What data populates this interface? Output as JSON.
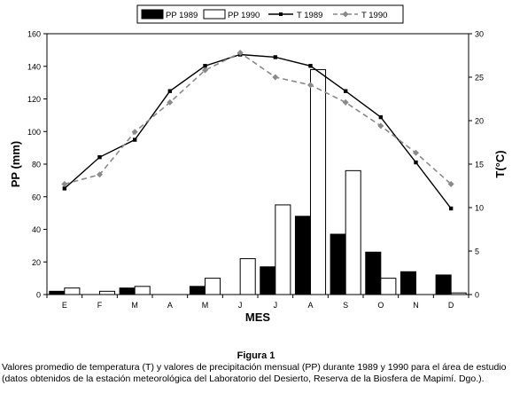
{
  "chart_data": {
    "type": "bar",
    "categories": [
      "E",
      "F",
      "M",
      "A",
      "M",
      "J",
      "J",
      "A",
      "S",
      "O",
      "N",
      "D"
    ],
    "xlabel": "MES",
    "ylabel_left": "PP (mm)",
    "ylabel_right": "T(°C)",
    "ylim_left": [
      0,
      160
    ],
    "ylim_right": [
      0,
      30
    ],
    "yticks_left": [
      0,
      20,
      40,
      60,
      80,
      100,
      120,
      140,
      160
    ],
    "yticks_right": [
      0,
      5,
      10,
      15,
      20,
      25,
      30
    ],
    "grid": false,
    "legend_position": "top",
    "bar_series": [
      {
        "name": "PP 1989",
        "values": [
          2,
          0,
          4,
          0,
          5,
          0,
          17,
          48,
          37,
          26,
          14,
          12
        ],
        "color": "#000000"
      },
      {
        "name": "PP 1990",
        "values": [
          4,
          2,
          5,
          0,
          10,
          22,
          55,
          138,
          76,
          10,
          0,
          1
        ],
        "color": "#ffffff"
      }
    ],
    "line_series": [
      {
        "name": "T 1989",
        "values": [
          12.2,
          15.8,
          17.8,
          23.4,
          26.3,
          27.6,
          27.3,
          26.3,
          23.4,
          20.4,
          15.2,
          9.9
        ],
        "color": "#000000",
        "style": "solid"
      },
      {
        "name": "T 1990",
        "values": [
          12.7,
          13.8,
          18.7,
          22.1,
          25.8,
          27.8,
          25.0,
          24.1,
          22.1,
          19.4,
          16.3,
          12.7
        ],
        "color": "#8a8a8a",
        "style": "dashed"
      }
    ]
  },
  "caption": {
    "title": "Figura 1",
    "text": "Valores promedio de temperatura (T) y valores de precipitación mensual (PP) durante 1989 y 1990 para el área de estudio (datos obtenidos de la estación meteorológica del Laboratorio del Desierto, Reserva de la Biosfera de Mapimí. Dgo.)."
  }
}
